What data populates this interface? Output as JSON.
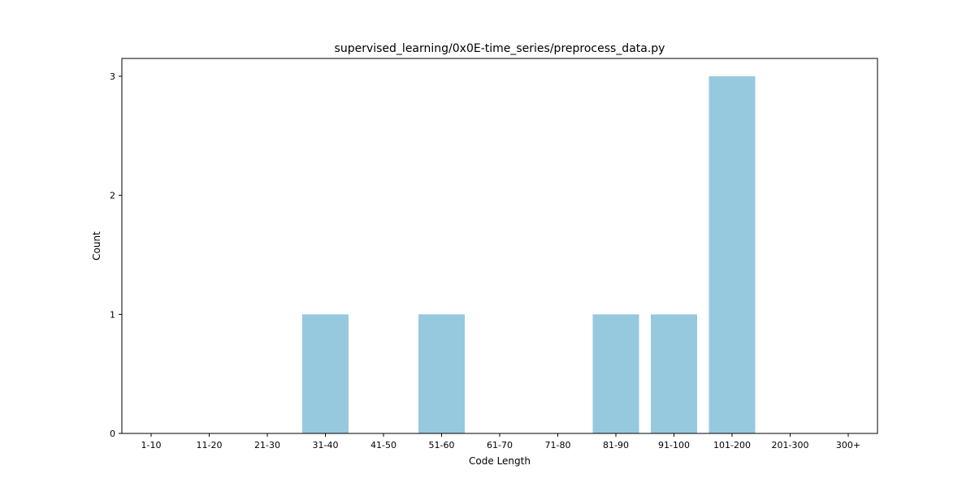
{
  "chart_data": {
    "type": "bar",
    "title": "supervised_learning/0x0E-time_series/preprocess_data.py",
    "xlabel": "Code Length",
    "ylabel": "Count",
    "categories": [
      "1-10",
      "11-20",
      "21-30",
      "31-40",
      "41-50",
      "51-60",
      "61-70",
      "71-80",
      "81-90",
      "91-100",
      "101-200",
      "201-300",
      "300+"
    ],
    "values": [
      0,
      0,
      0,
      1,
      0,
      1,
      0,
      0,
      1,
      1,
      3,
      0,
      0
    ],
    "ylim": [
      0,
      3.15
    ],
    "yticks": [
      "0",
      "1",
      "2",
      "3"
    ],
    "bar_color": "#96c9dd",
    "grid": false,
    "legend": "none"
  }
}
